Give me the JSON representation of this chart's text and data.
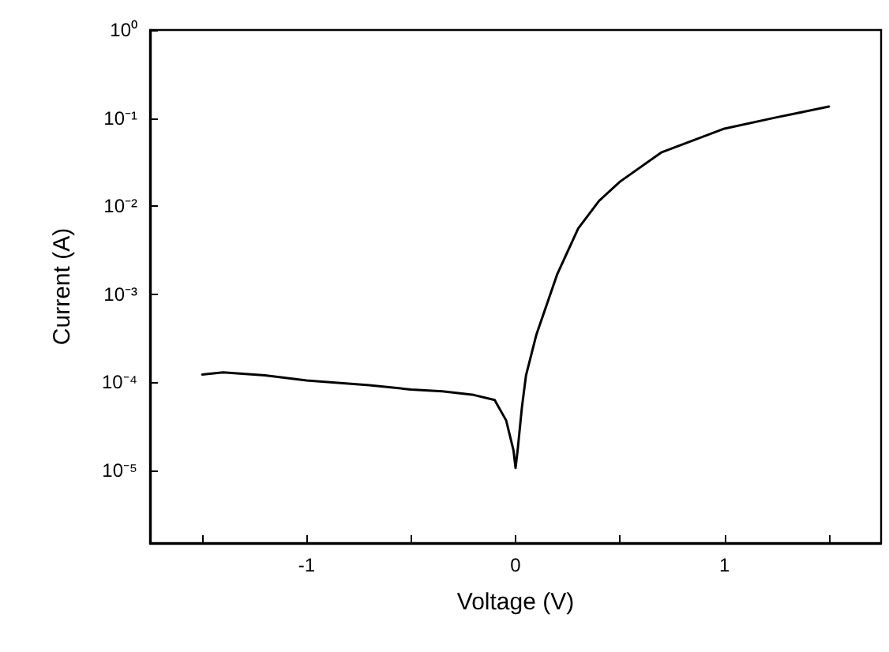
{
  "chart_data": {
    "type": "line",
    "xlabel": "Voltage (V)",
    "ylabel": "Current (A)",
    "log": "y",
    "grid": false,
    "marker": "none",
    "line_style": "solid",
    "xlim": [
      -1.75,
      1.75
    ],
    "xticks": [
      {
        "value": -1.5,
        "label": null
      },
      -1,
      {
        "value": -0.5,
        "label": null
      },
      0,
      {
        "value": 0.5,
        "label": null
      },
      1,
      {
        "value": 1.5,
        "label": null
      }
    ],
    "ylim": [
      1.5e-06,
      1
    ],
    "yticks": [
      {
        "value": 1e-05,
        "label": "10⁻⁵"
      },
      {
        "value": 0.0001,
        "label": "10⁻⁴"
      },
      {
        "value": 0.001,
        "label": "10⁻³"
      },
      {
        "value": 0.01,
        "label": "10⁻²"
      },
      {
        "value": 0.1,
        "label": "10⁻¹"
      },
      {
        "value": 1,
        "label": "10⁰"
      }
    ],
    "series": [
      {
        "color": "#000000",
        "x": [
          -1.5,
          -1.4,
          -1.2,
          -1,
          -0.7,
          -0.5,
          -0.35,
          -0.2,
          -0.1,
          -0.045,
          -0.01,
          0,
          0.01,
          0.03,
          0.05,
          0.1,
          0.2,
          0.3,
          0.4,
          0.5,
          0.7,
          1,
          1.25,
          1.5
        ],
        "values": [
          0.000123,
          0.00013,
          0.00012,
          0.000105,
          9.3e-05,
          8.3e-05,
          7.9e-05,
          7.2e-05,
          6.3e-05,
          3.7e-05,
          1.7e-05,
          1.07e-05,
          1.7e-05,
          5.1e-05,
          0.00012,
          0.00035,
          0.0017,
          0.0056,
          0.0115,
          0.019,
          0.041,
          0.076,
          0.102,
          0.135
        ]
      }
    ]
  }
}
